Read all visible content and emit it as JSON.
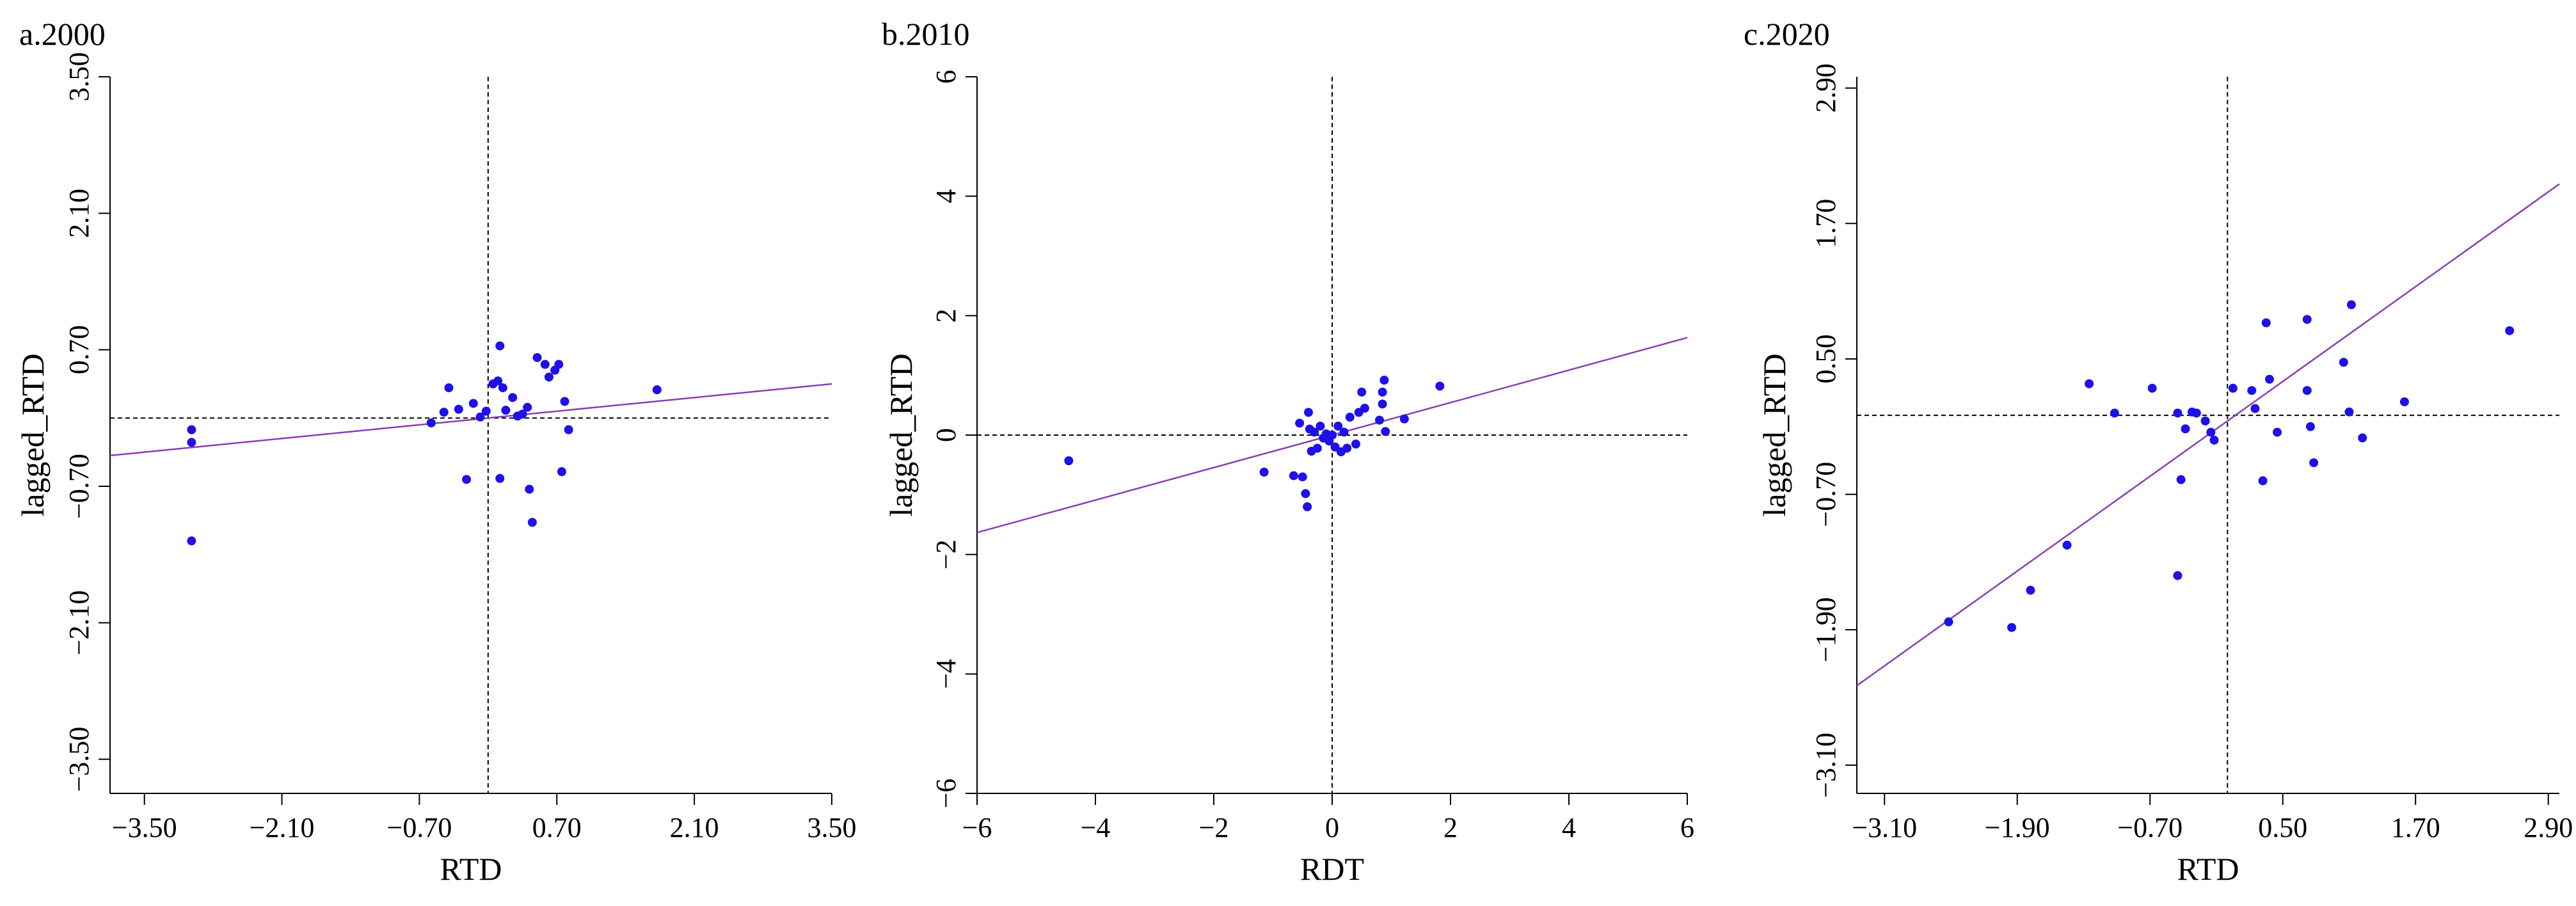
{
  "chart_data": [
    {
      "type": "scatter",
      "title": "a.2000",
      "xlabel": "RTD",
      "ylabel": "lagged_RTD",
      "xlim": [
        -3.85,
        3.5
      ],
      "ylim": [
        -3.85,
        3.5
      ],
      "xticks": [
        -3.5,
        -2.1,
        -0.7,
        0.7,
        2.1,
        3.5
      ],
      "xtick_labels": [
        "−3.50",
        "−2.10",
        "−0.70",
        "0.70",
        "2.10",
        "3.50"
      ],
      "yticks": [
        -3.5,
        -2.1,
        -0.7,
        0.7,
        2.1,
        3.5
      ],
      "ytick_labels": [
        "−3.50",
        "−2.10",
        "−0.70",
        "0.70",
        "2.10",
        "3.50"
      ],
      "axis_ref_x": 0,
      "axis_ref_y": 0,
      "fit_line": {
        "slope": 0.1,
        "intercept": 0.0
      },
      "points": [
        {
          "x": -3.02,
          "y": -0.12
        },
        {
          "x": -3.02,
          "y": -0.25
        },
        {
          "x": -3.02,
          "y": -1.26
        },
        {
          "x": -0.58,
          "y": -0.05
        },
        {
          "x": -0.45,
          "y": 0.06
        },
        {
          "x": -0.4,
          "y": 0.31
        },
        {
          "x": -0.3,
          "y": 0.09
        },
        {
          "x": -0.22,
          "y": -0.63
        },
        {
          "x": -0.15,
          "y": 0.15
        },
        {
          "x": -0.08,
          "y": 0.01
        },
        {
          "x": -0.02,
          "y": 0.07
        },
        {
          "x": 0.05,
          "y": 0.35
        },
        {
          "x": 0.1,
          "y": 0.38
        },
        {
          "x": 0.12,
          "y": 0.74
        },
        {
          "x": 0.12,
          "y": -0.62
        },
        {
          "x": 0.15,
          "y": 0.31
        },
        {
          "x": 0.18,
          "y": 0.08
        },
        {
          "x": 0.25,
          "y": 0.21
        },
        {
          "x": 0.3,
          "y": 0.02
        },
        {
          "x": 0.35,
          "y": 0.04
        },
        {
          "x": 0.4,
          "y": 0.11
        },
        {
          "x": 0.42,
          "y": -0.73
        },
        {
          "x": 0.45,
          "y": -1.07
        },
        {
          "x": 0.5,
          "y": 0.62
        },
        {
          "x": 0.58,
          "y": 0.55
        },
        {
          "x": 0.62,
          "y": 0.42
        },
        {
          "x": 0.68,
          "y": 0.49
        },
        {
          "x": 0.72,
          "y": 0.55
        },
        {
          "x": 0.75,
          "y": -0.55
        },
        {
          "x": 0.78,
          "y": 0.17
        },
        {
          "x": 0.82,
          "y": -0.12
        },
        {
          "x": 1.72,
          "y": 0.29
        }
      ]
    },
    {
      "type": "scatter",
      "title": "b.2010",
      "xlabel": "RDT",
      "ylabel": "lagged_RTD",
      "xlim": [
        -6,
        6
      ],
      "ylim": [
        -6,
        6
      ],
      "xticks": [
        -6,
        -4,
        -2,
        0,
        2,
        4,
        6
      ],
      "xtick_labels": [
        "−6",
        "−4",
        "−2",
        "0",
        "2",
        "4",
        "6"
      ],
      "yticks": [
        -6,
        -4,
        -2,
        0,
        2,
        4,
        6
      ],
      "ytick_labels": [
        "−6",
        "−4",
        "−2",
        "0",
        "2",
        "4",
        "6"
      ],
      "axis_ref_x": 0,
      "axis_ref_y": 0,
      "fit_line": {
        "slope": 0.272,
        "intercept": 0.0
      },
      "points": [
        {
          "x": -4.45,
          "y": -0.43
        },
        {
          "x": -1.15,
          "y": -0.62
        },
        {
          "x": -0.65,
          "y": -0.68
        },
        {
          "x": -0.55,
          "y": 0.2
        },
        {
          "x": -0.5,
          "y": -0.7
        },
        {
          "x": -0.45,
          "y": -0.98
        },
        {
          "x": -0.42,
          "y": -1.2
        },
        {
          "x": -0.4,
          "y": 0.38
        },
        {
          "x": -0.38,
          "y": 0.1
        },
        {
          "x": -0.35,
          "y": -0.27
        },
        {
          "x": -0.3,
          "y": 0.05
        },
        {
          "x": -0.25,
          "y": -0.22
        },
        {
          "x": -0.2,
          "y": 0.15
        },
        {
          "x": -0.15,
          "y": -0.05
        },
        {
          "x": -0.1,
          "y": 0.02
        },
        {
          "x": -0.05,
          "y": -0.1
        },
        {
          "x": 0.0,
          "y": 0.0
        },
        {
          "x": 0.05,
          "y": -0.2
        },
        {
          "x": 0.1,
          "y": 0.15
        },
        {
          "x": 0.15,
          "y": -0.28
        },
        {
          "x": 0.2,
          "y": 0.05
        },
        {
          "x": 0.25,
          "y": -0.22
        },
        {
          "x": 0.3,
          "y": 0.3
        },
        {
          "x": 0.4,
          "y": -0.15
        },
        {
          "x": 0.45,
          "y": 0.38
        },
        {
          "x": 0.5,
          "y": 0.72
        },
        {
          "x": 0.55,
          "y": 0.45
        },
        {
          "x": 0.8,
          "y": 0.25
        },
        {
          "x": 0.85,
          "y": 0.52
        },
        {
          "x": 0.85,
          "y": 0.72
        },
        {
          "x": 0.88,
          "y": 0.92
        },
        {
          "x": 0.9,
          "y": 0.06
        },
        {
          "x": 1.22,
          "y": 0.27
        },
        {
          "x": 1.82,
          "y": 0.82
        }
      ]
    },
    {
      "type": "scatter",
      "title": "c.2020",
      "xlabel": "RTD",
      "ylabel": "lagged_RTD",
      "xlim": [
        -3.35,
        3.0
      ],
      "ylim": [
        -3.35,
        3.0
      ],
      "xticks": [
        -3.1,
        -1.9,
        -0.7,
        0.5,
        1.7,
        2.9
      ],
      "xtick_labels": [
        "−3.10",
        "−1.90",
        "−0.70",
        "0.50",
        "1.70",
        "2.90"
      ],
      "yticks": [
        -3.1,
        -1.9,
        -0.7,
        0.5,
        1.7,
        2.9
      ],
      "ytick_labels": [
        "−3.10",
        "−1.90",
        "−0.70",
        "0.50",
        "1.70",
        "2.90"
      ],
      "axis_ref_x": 0,
      "axis_ref_y": 0,
      "fit_line": {
        "slope": 0.7,
        "intercept": -0.05
      },
      "points": [
        {
          "x": -2.52,
          "y": -1.83
        },
        {
          "x": -1.95,
          "y": -1.88
        },
        {
          "x": -1.78,
          "y": -1.55
        },
        {
          "x": -1.45,
          "y": -1.15
        },
        {
          "x": -1.25,
          "y": 0.28
        },
        {
          "x": -1.02,
          "y": 0.02
        },
        {
          "x": -0.68,
          "y": 0.24
        },
        {
          "x": -0.45,
          "y": 0.02
        },
        {
          "x": -0.45,
          "y": -1.42
        },
        {
          "x": -0.42,
          "y": -0.57
        },
        {
          "x": -0.38,
          "y": -0.12
        },
        {
          "x": -0.32,
          "y": 0.03
        },
        {
          "x": -0.28,
          "y": 0.02
        },
        {
          "x": -0.2,
          "y": -0.05
        },
        {
          "x": -0.15,
          "y": -0.15
        },
        {
          "x": -0.12,
          "y": -0.22
        },
        {
          "x": 0.05,
          "y": 0.24
        },
        {
          "x": 0.22,
          "y": 0.22
        },
        {
          "x": 0.25,
          "y": 0.06
        },
        {
          "x": 0.32,
          "y": -0.58
        },
        {
          "x": 0.35,
          "y": 0.82
        },
        {
          "x": 0.38,
          "y": 0.32
        },
        {
          "x": 0.45,
          "y": -0.15
        },
        {
          "x": 0.72,
          "y": 0.85
        },
        {
          "x": 0.72,
          "y": 0.22
        },
        {
          "x": 0.75,
          "y": -0.1
        },
        {
          "x": 0.78,
          "y": -0.42
        },
        {
          "x": 1.05,
          "y": 0.47
        },
        {
          "x": 1.1,
          "y": 0.03
        },
        {
          "x": 1.12,
          "y": 0.98
        },
        {
          "x": 1.22,
          "y": -0.2
        },
        {
          "x": 1.6,
          "y": 0.12
        },
        {
          "x": 2.55,
          "y": 0.75
        }
      ]
    }
  ]
}
